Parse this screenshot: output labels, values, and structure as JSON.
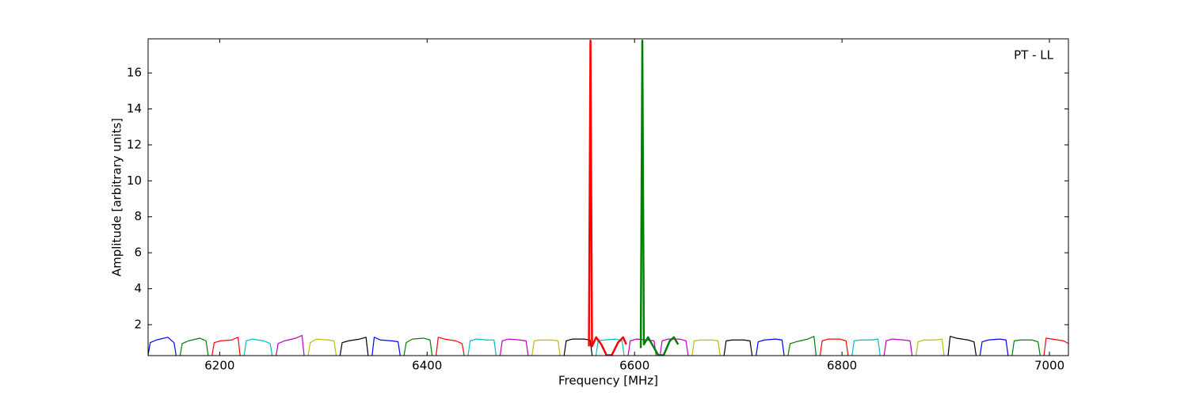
{
  "chart_data": {
    "type": "line",
    "annotation": "PT - LL",
    "x_label": "Frequency [MHz]",
    "y_label": "Amplitude [arbitrary units]",
    "xlim": [
      6131,
      7018.3
    ],
    "ylim": [
      0.28,
      17.9
    ],
    "xticks": [
      6200,
      6400,
      6600,
      6800,
      7000
    ],
    "yticks": [
      2,
      4,
      6,
      8,
      10,
      12,
      14,
      16
    ],
    "series": [
      {
        "color": "#0000ff",
        "x": [
          6131,
          6133,
          6139,
          6150,
          6156,
          6158
        ],
        "values": [
          0.3,
          1.0,
          1.15,
          1.3,
          1.0,
          0.3
        ]
      },
      {
        "color": "#008000",
        "x": [
          6161.9,
          6163.9,
          6169.9,
          6180.9,
          6186.9,
          6188.9
        ],
        "values": [
          0.3,
          0.95,
          1.1,
          1.25,
          1.1,
          0.3
        ]
      },
      {
        "color": "#ff0000",
        "x": [
          6192.7,
          6194.7,
          6200.7,
          6211.7,
          6217.7,
          6219.7
        ],
        "values": [
          0.3,
          1.0,
          1.1,
          1.15,
          1.3,
          0.3
        ]
      },
      {
        "color": "#00bfbf",
        "x": [
          6223.6,
          6225.6,
          6231.6,
          6242.6,
          6248.6,
          6250.6
        ],
        "values": [
          0.3,
          1.1,
          1.2,
          1.1,
          0.95,
          0.3
        ]
      },
      {
        "color": "#bf00bf",
        "x": [
          6254.4,
          6256.4,
          6262.4,
          6273.4,
          6279.4,
          6281.4
        ],
        "values": [
          0.3,
          0.95,
          1.1,
          1.25,
          1.4,
          0.3
        ]
      },
      {
        "color": "#bfbf00",
        "x": [
          6285.3,
          6287.3,
          6293.3,
          6304.3,
          6310.3,
          6312.3
        ],
        "values": [
          0.3,
          1.0,
          1.2,
          1.15,
          1.1,
          0.3
        ]
      },
      {
        "color": "#000000",
        "x": [
          6316.1,
          6318.1,
          6324.1,
          6335.1,
          6341.1,
          6343.1
        ],
        "values": [
          0.3,
          1.0,
          1.1,
          1.2,
          1.3,
          0.3
        ]
      },
      {
        "color": "#0000ff",
        "x": [
          6347,
          6349,
          6355,
          6366,
          6372,
          6374
        ],
        "values": [
          0.3,
          1.3,
          1.15,
          1.1,
          1.05,
          0.3
        ]
      },
      {
        "color": "#008000",
        "x": [
          6377.8,
          6379.8,
          6385.8,
          6396.8,
          6402.8,
          6404.8
        ],
        "values": [
          0.3,
          1.0,
          1.2,
          1.25,
          1.15,
          0.3
        ]
      },
      {
        "color": "#ff0000",
        "x": [
          6408.7,
          6410.7,
          6416.7,
          6427.7,
          6433.7,
          6435.7
        ],
        "values": [
          0.3,
          1.3,
          1.2,
          1.1,
          0.95,
          0.3
        ]
      },
      {
        "color": "#00bfbf",
        "x": [
          6439.5,
          6441.5,
          6447.5,
          6458.5,
          6464.5,
          6466.5
        ],
        "values": [
          0.3,
          1.1,
          1.2,
          1.15,
          1.15,
          0.3
        ]
      },
      {
        "color": "#bf00bf",
        "x": [
          6470.4,
          6472.4,
          6478.4,
          6489.4,
          6495.4,
          6497.4
        ],
        "values": [
          0.3,
          1.1,
          1.2,
          1.15,
          1.1,
          0.3
        ]
      },
      {
        "color": "#bfbf00",
        "x": [
          6501.2,
          6503.2,
          6509.2,
          6520.2,
          6526.2,
          6528.2
        ],
        "values": [
          0.3,
          1.1,
          1.15,
          1.15,
          1.1,
          0.3
        ]
      },
      {
        "color": "#000000",
        "x": [
          6532.1,
          6534.1,
          6540.1,
          6551.1,
          6557.1,
          6559.1
        ],
        "values": [
          0.3,
          1.1,
          1.2,
          1.2,
          1.15,
          0.3
        ]
      },
      {
        "color": "#00bfbf",
        "x": [
          6562.9,
          6564.9,
          6570.9,
          6581.9,
          6587.9,
          6589.9
        ],
        "values": [
          0.3,
          1.1,
          1.15,
          1.2,
          1.1,
          0.3
        ]
      },
      {
        "color": "#bf00bf",
        "x": [
          6593.8,
          6595.8,
          6601.8,
          6612.8,
          6618.8,
          6620.8
        ],
        "values": [
          0.3,
          1.1,
          1.2,
          1.15,
          1.1,
          0.3
        ]
      },
      {
        "color": "#bf00bf",
        "x": [
          6624.6,
          6626.6,
          6632.6,
          6643.6,
          6649.6,
          6651.6
        ],
        "values": [
          0.3,
          1.1,
          1.2,
          1.2,
          1.1,
          0.3
        ]
      },
      {
        "color": "#bfbf00",
        "x": [
          6655.5,
          6657.5,
          6663.5,
          6674.5,
          6680.5,
          6682.5
        ],
        "values": [
          0.3,
          1.1,
          1.15,
          1.15,
          1.1,
          0.3
        ]
      },
      {
        "color": "#000000",
        "x": [
          6686.3,
          6688.3,
          6694.3,
          6705.3,
          6711.3,
          6713.3
        ],
        "values": [
          0.3,
          1.1,
          1.15,
          1.15,
          1.1,
          0.3
        ]
      },
      {
        "color": "#0000ff",
        "x": [
          6717.2,
          6719.2,
          6725.2,
          6736.2,
          6742.2,
          6744.2
        ],
        "values": [
          0.3,
          1.05,
          1.15,
          1.2,
          1.15,
          0.3
        ]
      },
      {
        "color": "#008000",
        "x": [
          6748,
          6750,
          6756,
          6767,
          6773,
          6775
        ],
        "values": [
          0.3,
          0.95,
          1.05,
          1.2,
          1.35,
          0.3
        ]
      },
      {
        "color": "#ff0000",
        "x": [
          6778.9,
          6780.9,
          6786.9,
          6797.9,
          6803.9,
          6805.9
        ],
        "values": [
          0.3,
          1.1,
          1.2,
          1.2,
          1.1,
          0.3
        ]
      },
      {
        "color": "#00bfbf",
        "x": [
          6809.7,
          6811.7,
          6817.7,
          6828.7,
          6834.7,
          6836.7
        ],
        "values": [
          0.3,
          1.1,
          1.15,
          1.15,
          1.2,
          0.3
        ]
      },
      {
        "color": "#bf00bf",
        "x": [
          6840.6,
          6842.6,
          6848.6,
          6859.6,
          6865.6,
          6867.6
        ],
        "values": [
          0.3,
          1.1,
          1.2,
          1.15,
          1.1,
          0.3
        ]
      },
      {
        "color": "#bfbf00",
        "x": [
          6871.4,
          6873.4,
          6879.4,
          6890.4,
          6896.4,
          6898.4
        ],
        "values": [
          0.3,
          1.05,
          1.15,
          1.15,
          1.2,
          0.3
        ]
      },
      {
        "color": "#000000",
        "x": [
          6902.3,
          6904.3,
          6910.3,
          6921.3,
          6927.3,
          6929.3
        ],
        "values": [
          0.3,
          1.35,
          1.25,
          1.15,
          1.05,
          0.3
        ]
      },
      {
        "color": "#0000ff",
        "x": [
          6933.1,
          6935.1,
          6941.1,
          6952.1,
          6958.1,
          6960.1
        ],
        "values": [
          0.3,
          1.05,
          1.15,
          1.2,
          1.15,
          0.3
        ]
      },
      {
        "color": "#008000",
        "x": [
          6964,
          6966,
          6972,
          6983,
          6989,
          6991
        ],
        "values": [
          0.3,
          1.1,
          1.15,
          1.15,
          1.05,
          0.3
        ]
      },
      {
        "color": "#ff0000",
        "x": [
          6994.8,
          6996.8,
          7002.8,
          7013.8,
          7018.3
        ],
        "values": [
          0.3,
          1.25,
          1.2,
          1.1,
          0.95
        ]
      },
      {
        "color": "#ff0000",
        "linewidth": 2.5,
        "x": [
          6556,
          6557.5,
          6559,
          6563,
          6568,
          6573,
          6578,
          6584,
          6589,
          6592
        ],
        "values": [
          0.8,
          17.8,
          0.8,
          1.3,
          0.9,
          0.3,
          0.3,
          1.0,
          1.3,
          0.9
        ]
      },
      {
        "color": "#008000",
        "linewidth": 2.5,
        "x": [
          6606,
          6607.5,
          6609,
          6613,
          6618,
          6623,
          6628,
          6634,
          6638,
          6642
        ],
        "values": [
          0.7,
          17.8,
          0.9,
          1.3,
          0.8,
          0.3,
          0.3,
          1.1,
          1.3,
          0.9
        ]
      }
    ]
  }
}
